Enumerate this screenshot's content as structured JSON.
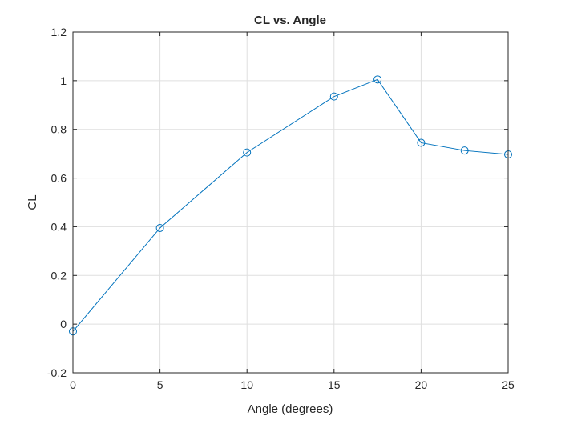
{
  "chart_data": {
    "type": "line",
    "title": "CL vs. Angle",
    "xlabel": "Angle (degrees)",
    "ylabel": "CL",
    "xlim": [
      0,
      25
    ],
    "ylim": [
      -0.2,
      1.2
    ],
    "xticks": [
      0,
      5,
      10,
      15,
      20,
      25
    ],
    "xtick_labels": [
      "0",
      "5",
      "10",
      "15",
      "20",
      "25"
    ],
    "yticks": [
      -0.2,
      0,
      0.2,
      0.4,
      0.6,
      0.8,
      1,
      1.2
    ],
    "ytick_labels": [
      "-0.2",
      "0",
      "0.2",
      "0.4",
      "0.6",
      "0.8",
      "1",
      "1.2"
    ],
    "grid": true,
    "series": [
      {
        "x": [
          0,
          5,
          10,
          15,
          17.5,
          20,
          22.5,
          25
        ],
        "y": [
          -0.03,
          0.395,
          0.705,
          0.935,
          1.005,
          0.745,
          0.713,
          0.697
        ],
        "color": "#0072BD",
        "marker": "circle"
      }
    ]
  },
  "colors": {
    "axis": "#262626",
    "grid": "#dfdfdf",
    "background": "#ffffff"
  }
}
